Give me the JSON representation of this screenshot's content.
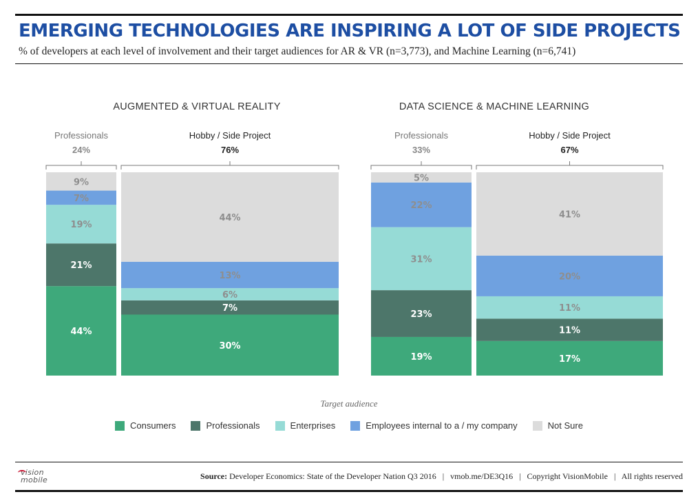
{
  "header": {
    "title": "EMERGING TECHNOLOGIES ARE INSPIRING A LOT OF SIDE PROJECTS",
    "subtitle": "% of developers at each level of involvement and their target audiences for AR & VR (n=3,773), and Machine Learning (n=6,741)"
  },
  "colors": {
    "Consumers": "#3ea97b",
    "Professionals": "#4d766a",
    "Enterprises": "#96dbd6",
    "Employees internal to a / my company": "#6fa1e0",
    "Not Sure": "#dcdcdc",
    "label_dark": "#ffffff",
    "label_light": "#8e8e8e"
  },
  "chart_data": [
    {
      "type": "bar",
      "stacked": true,
      "title": "AUGMENTED & VIRTUAL REALITY",
      "series_order": [
        "Consumers",
        "Professionals",
        "Enterprises",
        "Employees internal to a / my company",
        "Not Sure"
      ],
      "groups": [
        {
          "name": "Professionals",
          "share": "24%",
          "values": [
            44,
            21,
            19,
            7,
            9
          ]
        },
        {
          "name": "Hobby / Side Project",
          "share": "76%",
          "values": [
            30,
            7,
            6,
            13,
            44
          ]
        }
      ]
    },
    {
      "type": "bar",
      "stacked": true,
      "title": "DATA SCIENCE & MACHINE LEARNING",
      "series_order": [
        "Consumers",
        "Professionals",
        "Enterprises",
        "Employees internal to a / my company",
        "Not Sure"
      ],
      "groups": [
        {
          "name": "Professionals",
          "share": "33%",
          "values": [
            19,
            23,
            31,
            22,
            5
          ]
        },
        {
          "name": "Hobby / Side Project",
          "share": "67%",
          "values": [
            17,
            11,
            11,
            20,
            41
          ]
        }
      ]
    }
  ],
  "legend": {
    "title": "Target audience",
    "items": [
      "Consumers",
      "Professionals",
      "Enterprises",
      "Employees internal to a / my company",
      "Not Sure"
    ]
  },
  "footer": {
    "source_label": "Source:",
    "source_text": "Developer Economics: State of the Developer Nation Q3 2016",
    "link": "vmob.me/DE3Q16",
    "copyright": "Copyright VisionMobile",
    "rights": "All rights reserved",
    "logo_line1": "vision",
    "logo_line2": "mobile"
  }
}
